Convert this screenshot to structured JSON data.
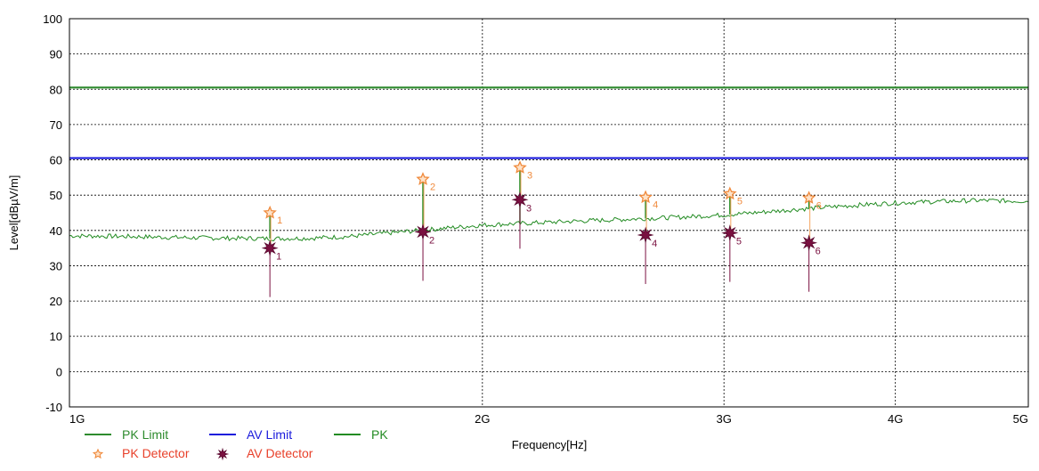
{
  "chart_data": {
    "type": "line",
    "xlabel": "Frequency[Hz]",
    "ylabel": "Level[dBµV/m]",
    "x_scale": "log",
    "xlim": [
      1000000000,
      5000000000
    ],
    "ylim": [
      -10,
      100
    ],
    "grid": true,
    "y_ticks": [
      -10,
      0,
      10,
      20,
      30,
      40,
      50,
      60,
      70,
      80,
      90,
      100
    ],
    "y_tick_labels": [
      "-10",
      "0",
      "10",
      "20",
      "30",
      "40",
      "50",
      "60",
      "70",
      "80",
      "90",
      "100"
    ],
    "x_ticks": [
      1000000000,
      2000000000,
      3000000000,
      4000000000,
      5000000000
    ],
    "x_tick_labels": [
      "1G",
      "2G",
      "3G",
      "4G",
      "5G"
    ],
    "series": [
      {
        "name": "PK Limit",
        "color": "#2e8b2e",
        "x": [
          1000000000,
          5000000000
        ],
        "values": [
          80.5,
          80.5
        ]
      },
      {
        "name": "AV Limit",
        "color": "#1a1adc",
        "x": [
          1000000000,
          5000000000
        ],
        "values": [
          60.5,
          60.5
        ]
      },
      {
        "name": "PK",
        "color": "#228b22",
        "x": [
          1000000000,
          1100000000,
          1200000000,
          1300000000,
          1400000000,
          1500000000,
          1600000000,
          1700000000,
          1800000000,
          1900000000,
          2000000000,
          2200000000,
          2400000000,
          2600000000,
          2800000000,
          3000000000,
          3200000000,
          3400000000,
          3600000000,
          3800000000,
          4000000000,
          4300000000,
          4600000000,
          5000000000
        ],
        "values": [
          38.5,
          38.3,
          38.0,
          37.8,
          37.7,
          37.8,
          38.3,
          39.2,
          40.0,
          40.8,
          41.5,
          42.2,
          42.8,
          43.3,
          43.8,
          44.4,
          45.2,
          46.0,
          46.7,
          47.3,
          47.8,
          48.2,
          48.5,
          48.3
        ]
      }
    ],
    "pk_detector": [
      {
        "label": "1",
        "x": 1400000000,
        "y": 45.0
      },
      {
        "label": "2",
        "x": 1810000000,
        "y": 54.5
      },
      {
        "label": "3",
        "x": 2130000000,
        "y": 57.8
      },
      {
        "label": "4",
        "x": 2630000000,
        "y": 49.4
      },
      {
        "label": "5",
        "x": 3030000000,
        "y": 50.4
      },
      {
        "label": "6",
        "x": 3460000000,
        "y": 49.2
      }
    ],
    "av_detector": [
      {
        "label": "1",
        "x": 1400000000,
        "y": 35.0
      },
      {
        "label": "2",
        "x": 1810000000,
        "y": 39.6
      },
      {
        "label": "3",
        "x": 2130000000,
        "y": 48.7
      },
      {
        "label": "4",
        "x": 2630000000,
        "y": 38.7
      },
      {
        "label": "5",
        "x": 3030000000,
        "y": 39.3
      },
      {
        "label": "6",
        "x": 3460000000,
        "y": 36.5
      }
    ],
    "legend": [
      {
        "label": "PK Limit",
        "symbol": "line",
        "color": "#2e8b2e",
        "text_color": "#2e8b2e"
      },
      {
        "label": "AV Limit",
        "symbol": "line",
        "color": "#1a1adc",
        "text_color": "#1a1adc"
      },
      {
        "label": "PK",
        "symbol": "line",
        "color": "#228b22",
        "text_color": "#228b22"
      },
      {
        "label": "PK Detector",
        "symbol": "star",
        "color": "#f4a460",
        "text_color": "#e8402a"
      },
      {
        "label": "AV Detector",
        "symbol": "burst",
        "color": "#7a1040",
        "text_color": "#e8402a"
      }
    ],
    "legend_placement": "bottom-left"
  }
}
